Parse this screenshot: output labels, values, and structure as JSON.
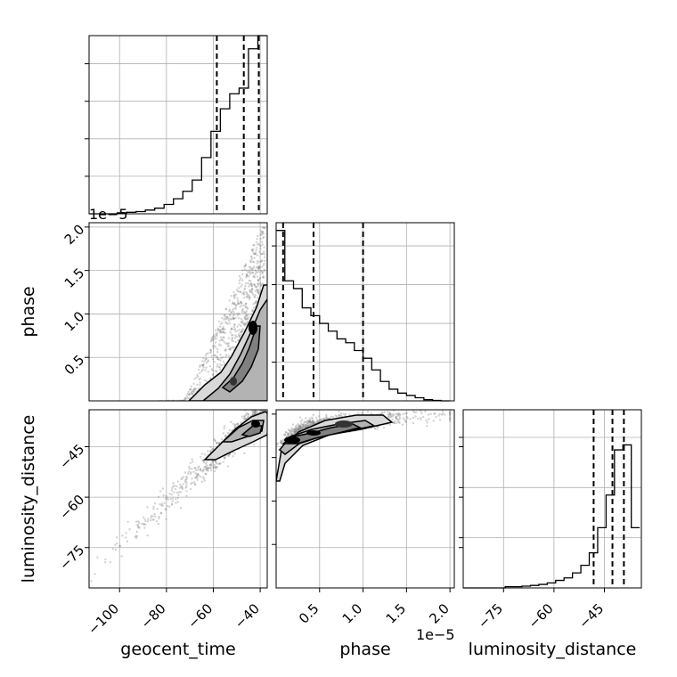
{
  "chart_data": {
    "type": "corner",
    "parameters": [
      "geocent_time",
      "phase",
      "luminosity_distance"
    ],
    "offset_texts": [
      {
        "label": "1e−5",
        "applies_to": "phase y-axis (row 2)"
      },
      {
        "label": "1e−5",
        "applies_to": "phase x-axis (column 2)"
      }
    ],
    "axis_labels": {
      "x": [
        "geocent_time",
        "phase",
        "luminosity_distance"
      ],
      "y": [
        "",
        "phase",
        "luminosity_distance"
      ]
    },
    "ticks": {
      "geocent_time": {
        "values": [
          -100,
          -80,
          -60,
          -40
        ],
        "labels": [
          "−100",
          "−80",
          "−60",
          "−40"
        ],
        "range": [
          -113,
          -37
        ]
      },
      "phase": {
        "values": [
          0.5,
          1.0,
          1.5,
          2.0
        ],
        "labels": [
          "0.5",
          "1.0",
          "1.5",
          "2.0"
        ],
        "range": [
          0.0,
          2.05
        ],
        "unit_scale": "1e-5"
      },
      "luminosity_distance": {
        "values": [
          -45,
          -60,
          -75
        ],
        "labels": [
          "−45",
          "−60",
          "−75"
        ],
        "range": [
          -87,
          -34
        ]
      }
    },
    "diag_tick_values": {
      "geocent_time": {
        "y": [
          20,
          40,
          60,
          80
        ]
      },
      "phase": {
        "y": [
          10,
          20,
          30,
          40
        ]
      },
      "luminosity_distance": {
        "y": [
          20,
          40,
          60
        ]
      }
    },
    "histograms": [
      {
        "parameter": "geocent_time",
        "bin_edges": [
          -113,
          -109,
          -105,
          -101,
          -97,
          -93,
          -89,
          -85,
          -81,
          -77,
          -73,
          -69,
          -65,
          -61,
          -57,
          -53,
          -49,
          -45,
          -41,
          -37
        ],
        "counts": [
          0,
          0,
          0,
          0.5,
          0.8,
          1.2,
          2.0,
          3,
          5,
          8,
          12,
          18,
          30,
          44,
          56,
          64,
          67,
          88,
          95
        ],
        "ylim": [
          0,
          95
        ],
        "quantiles": [
          -58.5,
          -47.0,
          -40.6
        ]
      },
      {
        "parameter": "phase",
        "bin_edges": [
          0.0,
          0.1,
          0.2,
          0.3,
          0.4,
          0.5,
          0.6,
          0.7,
          0.8,
          0.9,
          1.0,
          1.1,
          1.2,
          1.3,
          1.4,
          1.5,
          1.6,
          1.7,
          1.8,
          1.9,
          2.0
        ],
        "counts": [
          44,
          31,
          29,
          24,
          22,
          20,
          18,
          16,
          15,
          13,
          11,
          8,
          5,
          3,
          2,
          1.4,
          0.8,
          0.3,
          0.1,
          0
        ],
        "ylim": [
          0,
          46
        ],
        "quantiles": [
          0.08,
          0.43,
          1.0
        ]
      },
      {
        "parameter": "luminosity_distance",
        "bin_edges": [
          -87,
          -84.5,
          -82,
          -79.5,
          -77,
          -74.5,
          -72,
          -69.5,
          -67,
          -64.5,
          -62,
          -59.5,
          -57,
          -54.5,
          -52,
          -49.5,
          -47,
          -44.5,
          -42,
          -39.5,
          -37,
          -34.5
        ],
        "counts": [
          0,
          0,
          0,
          0,
          0,
          0.5,
          0.5,
          0.7,
          1,
          1.4,
          2,
          3,
          4,
          6,
          9,
          14,
          24,
          37,
          55,
          57,
          24
        ],
        "ylim": [
          0,
          71
        ],
        "quantiles": [
          -48.2,
          -42.6,
          -39.2
        ]
      }
    ],
    "contour_panels": [
      {
        "x_param": "geocent_time",
        "y_param": "phase",
        "contour_levels": [
          "outer",
          "middle",
          "inner"
        ]
      },
      {
        "x_param": "geocent_time",
        "y_param": "luminosity_distance",
        "contour_levels": [
          "outer",
          "middle",
          "inner"
        ]
      },
      {
        "x_param": "phase",
        "y_param": "luminosity_distance",
        "contour_levels": [
          "outer",
          "middle",
          "inner"
        ]
      }
    ],
    "grid": true,
    "line_color": "#000000",
    "scatter_color": "#808080",
    "fill_colors": [
      "#e6e6e6",
      "#b3b3b3",
      "#808080",
      "#000000"
    ]
  }
}
